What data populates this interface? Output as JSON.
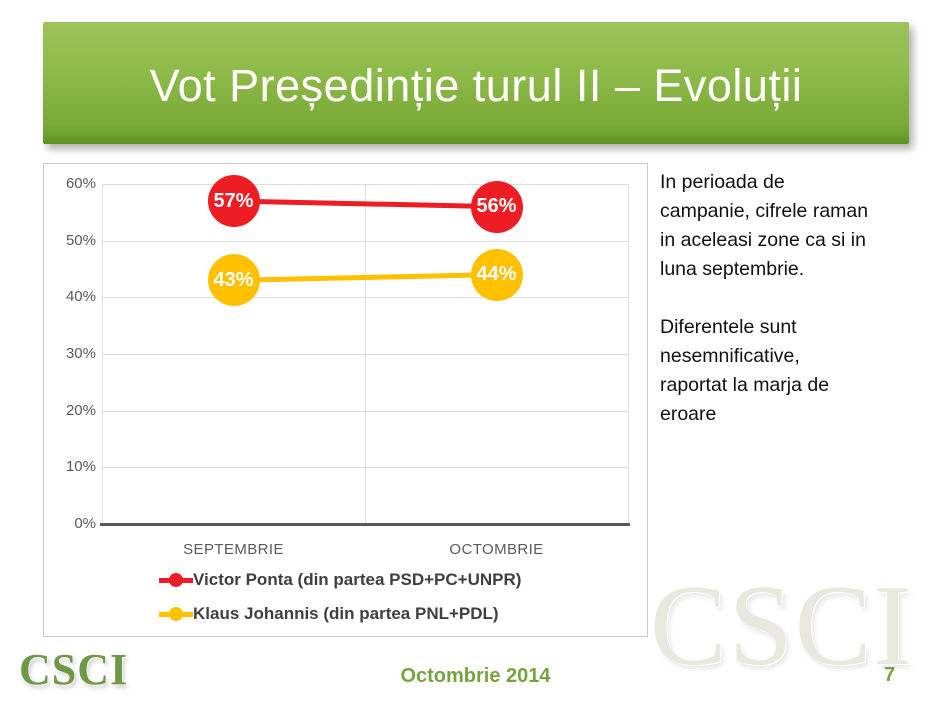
{
  "slide": {
    "title": "Vot Președinție turul II – Evoluții",
    "footer_date": "Octombrie 2014",
    "page_number": "7",
    "logo_text": "CSCI",
    "watermark_text": "CSCI"
  },
  "commentary": {
    "paragraph1": [
      "In perioada de",
      "campanie, cifrele raman",
      "in aceleasi zone ca si in",
      "luna septembrie."
    ],
    "paragraph2": [
      "Diferentele sunt",
      "nesemnificative,",
      "raportat la marja de",
      "eroare"
    ]
  },
  "colors": {
    "banner_green_top": "#9DC45B",
    "banner_green_bottom": "#6BA02C",
    "accent_green": "#77A33E",
    "logo_green": "#6E9947",
    "series_red": "#EE1C23",
    "series_yellow": "#FFC000",
    "axis_text": "#595959",
    "legend_text": "#3F3F3F",
    "gridline": "#DCDCDC"
  },
  "chart_data": {
    "type": "line",
    "title": "",
    "categories": [
      "SEPTEMBRIE",
      "OCTOMBRIE"
    ],
    "series": [
      {
        "name": "Victor Ponta (din partea PSD+PC+UNPR)",
        "color": "#EE1C23",
        "values": [
          57,
          56
        ],
        "labels": [
          "57%",
          "56%"
        ]
      },
      {
        "name": "Klaus Johannis (din partea PNL+PDL)",
        "color": "#FFC000",
        "values": [
          43,
          44
        ],
        "labels": [
          "43%",
          "44%"
        ]
      }
    ],
    "ylim": [
      0,
      60
    ],
    "yticks": [
      0,
      10,
      20,
      30,
      40,
      50,
      60
    ],
    "ytick_suffix": "%",
    "grid": true,
    "legend_position": "bottom",
    "data_labels": "on-marker"
  }
}
